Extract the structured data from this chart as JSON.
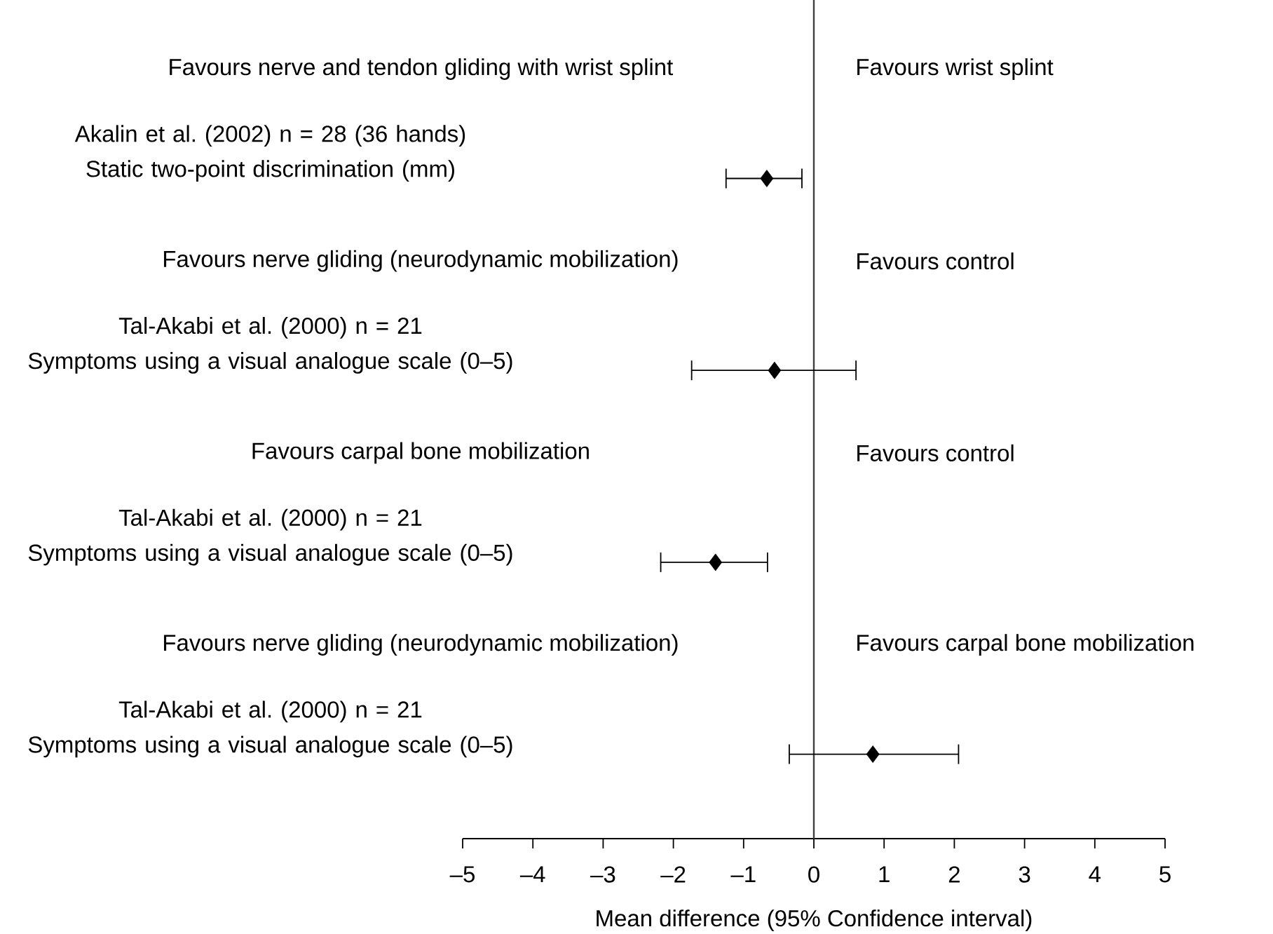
{
  "chart_data": {
    "type": "scatter",
    "orientation": "horizontal",
    "categories": [
      "Akalin et al. (2002) n = 28 (36 hands)\nStatic two-point discrimination (mm)",
      "Tal-Akabi et al. (2000) n = 21\nSymptoms using a visual analogue scale (0–5)",
      "Tal-Akabi et al. (2000) n = 21\nSymptoms using a visual analogue scale (0–5)",
      "Tal-Akabi et al. (2000) n = 21\nSymptoms using a visual analogue scale (0–5)"
    ],
    "values": [
      -0.67,
      -0.56,
      -1.4,
      0.84
    ],
    "errors": [
      [
        -1.25,
        -0.17
      ],
      [
        -1.74,
        0.6
      ],
      [
        -2.18,
        -0.66
      ],
      [
        -0.35,
        2.06
      ]
    ],
    "color": "#000000",
    "marker": "diamond",
    "xlim": [
      -5,
      5
    ],
    "xticks": [
      {
        "value": -5,
        "label": "–5"
      },
      {
        "value": -4,
        "label": "–4"
      },
      {
        "value": -3,
        "label": "–3"
      },
      {
        "value": -2,
        "label": "–2"
      },
      {
        "value": -1,
        "label": "–1"
      },
      0,
      1,
      2,
      3,
      4,
      5
    ],
    "xlabel": "Mean difference (95% Confidence interval)",
    "ref_lines": [
      {
        "axis": "x",
        "value": 0
      }
    ],
    "annotations": [
      "Favours nerve and tendon gliding with wrist splint",
      "Favours wrist splint",
      "Favours nerve gliding (neurodynamic mobilization)",
      "Favours control",
      "Favours carpal bone mobilization",
      "Favours control",
      "Favours nerve gliding (neurodynamic mobilization)",
      "Favours carpal bone mobilization"
    ]
  }
}
